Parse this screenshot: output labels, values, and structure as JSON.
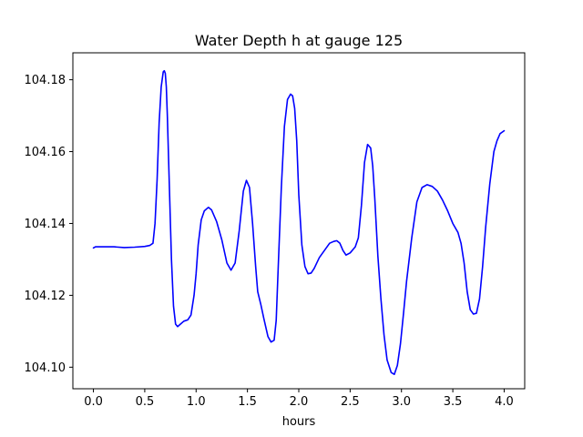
{
  "chart_data": {
    "type": "line",
    "title": "Water Depth h at gauge 125",
    "xlabel": "hours",
    "ylabel": "",
    "xlim": [
      -0.2,
      4.2
    ],
    "ylim": [
      104.094,
      104.1875
    ],
    "xticks": [
      0.0,
      0.5,
      1.0,
      1.5,
      2.0,
      2.5,
      3.0,
      3.5,
      4.0
    ],
    "xtick_labels": [
      "0.0",
      "0.5",
      "1.0",
      "1.5",
      "2.0",
      "2.5",
      "3.0",
      "3.5",
      "4.0"
    ],
    "yticks": [
      104.1,
      104.12,
      104.14,
      104.16,
      104.18
    ],
    "ytick_labels": [
      "104.10",
      "104.12",
      "104.14",
      "104.16",
      "104.18"
    ],
    "grid": false,
    "legend": "none",
    "series": [
      {
        "name": "",
        "color": "#0000ff",
        "x": [
          0.0,
          0.02,
          0.1,
          0.2,
          0.3,
          0.4,
          0.5,
          0.55,
          0.58,
          0.6,
          0.62,
          0.64,
          0.66,
          0.68,
          0.69,
          0.7,
          0.71,
          0.72,
          0.74,
          0.76,
          0.78,
          0.8,
          0.82,
          0.84,
          0.88,
          0.92,
          0.95,
          0.98,
          1.0,
          1.02,
          1.05,
          1.08,
          1.12,
          1.15,
          1.2,
          1.25,
          1.3,
          1.34,
          1.38,
          1.42,
          1.46,
          1.49,
          1.52,
          1.55,
          1.58,
          1.6,
          1.63,
          1.66,
          1.7,
          1.73,
          1.76,
          1.78,
          1.8,
          1.83,
          1.86,
          1.89,
          1.92,
          1.94,
          1.96,
          1.98,
          2.0,
          2.03,
          2.06,
          2.09,
          2.12,
          2.15,
          2.2,
          2.25,
          2.3,
          2.34,
          2.37,
          2.4,
          2.43,
          2.46,
          2.5,
          2.55,
          2.58,
          2.61,
          2.64,
          2.67,
          2.7,
          2.72,
          2.74,
          2.77,
          2.8,
          2.83,
          2.86,
          2.9,
          2.93,
          2.96,
          2.99,
          3.02,
          3.05,
          3.1,
          3.15,
          3.2,
          3.25,
          3.3,
          3.35,
          3.4,
          3.45,
          3.5,
          3.55,
          3.58,
          3.61,
          3.64,
          3.67,
          3.7,
          3.73,
          3.76,
          3.79,
          3.82,
          3.86,
          3.9,
          3.93,
          3.96,
          4.0
        ],
        "y": [
          104.1332,
          104.1335,
          104.1335,
          104.1335,
          104.1333,
          104.1334,
          104.1336,
          104.1339,
          104.1345,
          104.14,
          104.152,
          104.168,
          104.178,
          104.1822,
          104.1825,
          104.1818,
          104.178,
          104.17,
          104.15,
          104.13,
          104.117,
          104.112,
          104.1113,
          104.1118,
          104.1128,
          104.1132,
          104.1145,
          104.12,
          104.126,
          104.134,
          104.141,
          104.1435,
          104.1445,
          104.1438,
          104.1405,
          104.1355,
          104.129,
          104.127,
          104.129,
          104.138,
          104.149,
          104.152,
          104.15,
          104.14,
          104.128,
          104.121,
          104.1175,
          104.1135,
          104.1085,
          104.107,
          104.1075,
          104.113,
          104.128,
          104.15,
          104.167,
          104.1745,
          104.176,
          104.1755,
          104.172,
          104.163,
          104.148,
          104.134,
          104.128,
          104.126,
          104.1262,
          104.1275,
          104.1305,
          104.1325,
          104.1345,
          104.135,
          104.1352,
          104.1345,
          104.1325,
          104.1312,
          104.1318,
          104.1335,
          104.136,
          104.145,
          104.157,
          104.162,
          104.161,
          104.156,
          104.147,
          104.131,
          104.119,
          104.109,
          104.102,
          104.0985,
          104.098,
          104.1005,
          104.1065,
          104.115,
          104.124,
          104.136,
          104.146,
          104.15,
          104.1508,
          104.1503,
          104.149,
          104.1465,
          104.1435,
          104.14,
          104.1375,
          104.1345,
          104.129,
          104.121,
          104.116,
          104.1148,
          104.115,
          104.119,
          104.128,
          104.139,
          104.151,
          104.16,
          104.163,
          104.165,
          104.1658
        ]
      }
    ]
  }
}
